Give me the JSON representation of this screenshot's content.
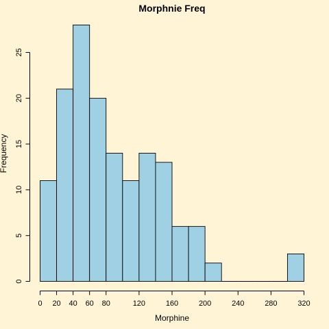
{
  "chart_data": {
    "type": "bar",
    "title": "Morphnie Freq",
    "xlabel": "Morphine",
    "ylabel": "Frequency",
    "xlim": [
      0,
      320
    ],
    "ylim": [
      0,
      28
    ],
    "bin_width": 20,
    "bins": [
      0,
      20,
      40,
      60,
      80,
      100,
      120,
      140,
      160,
      180,
      200,
      220,
      240,
      260,
      280,
      300
    ],
    "values": [
      11,
      21,
      28,
      20,
      14,
      11,
      14,
      13,
      6,
      6,
      2,
      0,
      0,
      0,
      0,
      3
    ],
    "xticks": [
      0,
      20,
      40,
      60,
      80,
      120,
      160,
      200,
      240,
      280,
      320
    ],
    "yticks": [
      0,
      5,
      10,
      15,
      20,
      25
    ],
    "grid": false,
    "colors": {
      "bar": "#9fd0e3",
      "background": "#fff5d6"
    }
  }
}
